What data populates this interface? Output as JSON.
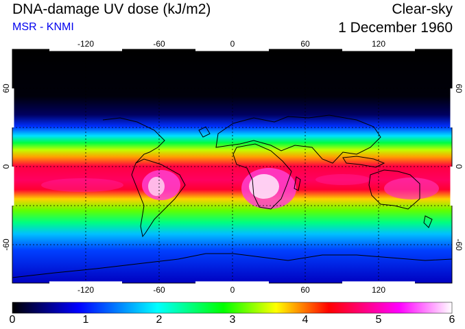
{
  "header": {
    "title": "DNA-damage UV dose (kJ/m2)",
    "source": "MSR - KNMI",
    "sky_condition": "Clear-sky",
    "date": "1 December 1960"
  },
  "map": {
    "lon_ticks": [
      "-120",
      "-60",
      "0",
      "60",
      "120"
    ],
    "lat_ticks": [
      "60",
      "0",
      "-60"
    ],
    "lon_range": [
      -180,
      180
    ],
    "lat_range": [
      -90,
      90
    ]
  },
  "colorbar": {
    "labels": [
      "0",
      "1",
      "2",
      "3",
      "4",
      "5",
      "6"
    ],
    "min": 0,
    "max": 6
  },
  "colors": {
    "scale": [
      "#000000",
      "#0000ff",
      "#00ffff",
      "#00ff00",
      "#ffff00",
      "#ff0000",
      "#ff00ff",
      "#ffffff"
    ],
    "subtitle": "#0000ee"
  }
}
